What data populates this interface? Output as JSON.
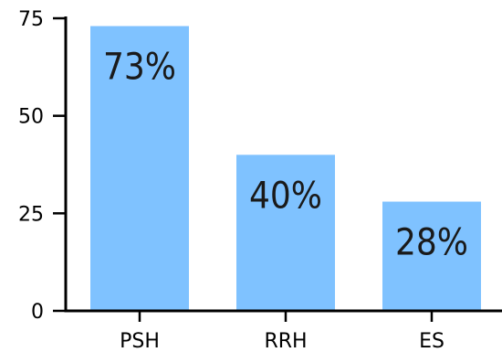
{
  "colors": {
    "bar": "#7fc2ff",
    "axis": "#000000",
    "label": "#1a1a1a"
  },
  "chart_data": {
    "type": "bar",
    "title": "",
    "xlabel": "",
    "ylabel": "",
    "categories": [
      "PSH",
      "RRH",
      "ES"
    ],
    "values": [
      73,
      40,
      28
    ],
    "data_labels": [
      "73%",
      "40%",
      "28%"
    ],
    "yticks": [
      0,
      25,
      50,
      75
    ],
    "ytick_labels": [
      "0",
      "25",
      "50",
      "75"
    ],
    "ylim": [
      0,
      75
    ],
    "grid": false,
    "legend": "none"
  }
}
